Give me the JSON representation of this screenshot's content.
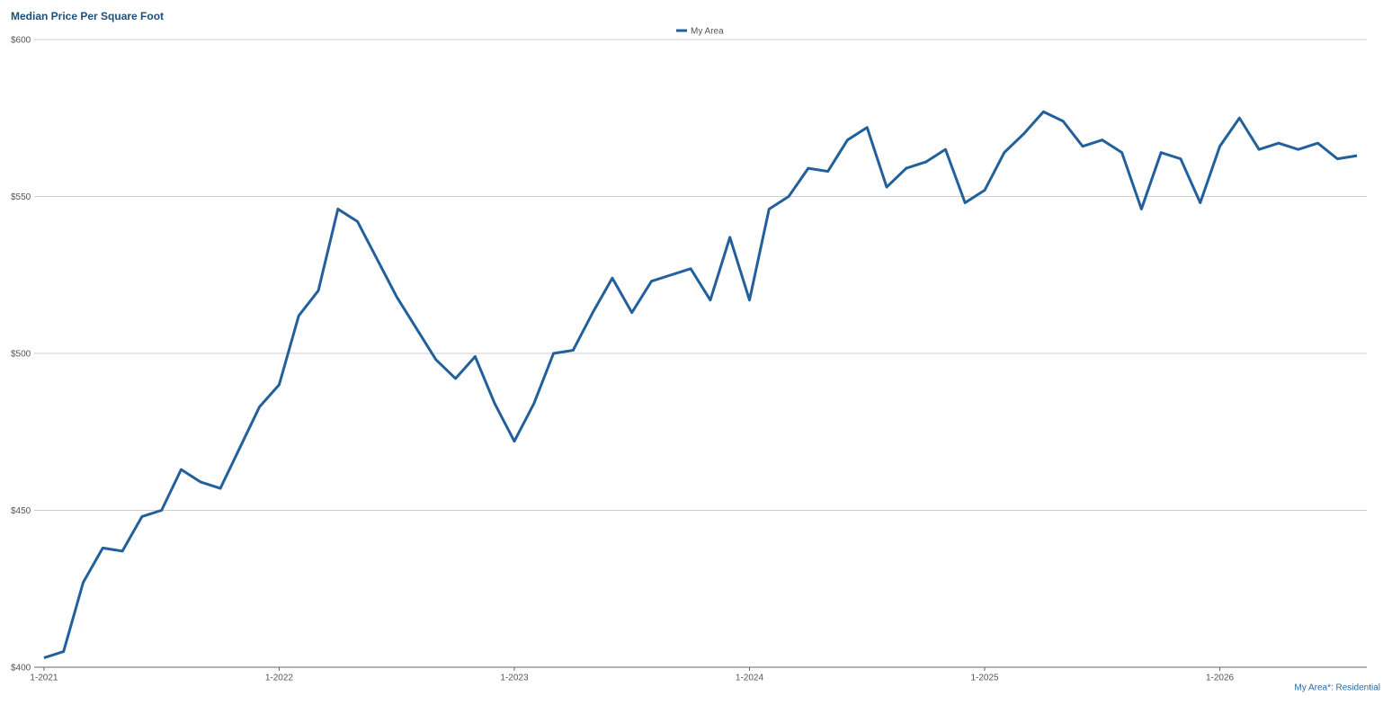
{
  "chart_data": {
    "type": "line",
    "title": "Median Price Per Square Foot",
    "categories": [
      "1-2021",
      null,
      null,
      null,
      null,
      null,
      null,
      null,
      null,
      null,
      null,
      null,
      "1-2022",
      null,
      null,
      null,
      null,
      null,
      null,
      null,
      null,
      null,
      null,
      null,
      "1-2023",
      null,
      null,
      null,
      null,
      null,
      null,
      null,
      null,
      null,
      null,
      null,
      "1-2024",
      null,
      null,
      null,
      null,
      null,
      null,
      null,
      null,
      null,
      null,
      null,
      "1-2025",
      null,
      null,
      null,
      null,
      null,
      null,
      null,
      null,
      null,
      null,
      null,
      "1-2026",
      null,
      null,
      null,
      null,
      null,
      null,
      null
    ],
    "series": [
      {
        "name": "My Area",
        "color": "#22609b",
        "values": [
          403,
          405,
          427,
          438,
          437,
          448,
          450,
          463,
          459,
          457,
          470,
          483,
          490,
          512,
          520,
          546,
          542,
          530,
          518,
          508,
          498,
          492,
          499,
          484,
          472,
          484,
          500,
          501,
          513,
          524,
          513,
          523,
          525,
          527,
          517,
          537,
          517,
          546,
          550,
          559,
          558,
          568,
          572,
          553,
          559,
          561,
          565,
          548,
          552,
          564,
          570,
          577,
          574,
          566,
          568,
          564,
          546,
          564,
          562,
          548,
          566,
          575,
          565,
          567,
          565,
          567,
          562,
          563
        ]
      }
    ],
    "ylim": [
      400,
      600
    ],
    "yticks": [
      {
        "value": 400,
        "label": "$400"
      },
      {
        "value": 450,
        "label": "$450"
      },
      {
        "value": 500,
        "label": "$500"
      },
      {
        "value": 550,
        "label": "$550"
      },
      {
        "value": 600,
        "label": "$600"
      }
    ],
    "grid": true,
    "legend": "top",
    "footnote": "My Area*: Residential"
  }
}
